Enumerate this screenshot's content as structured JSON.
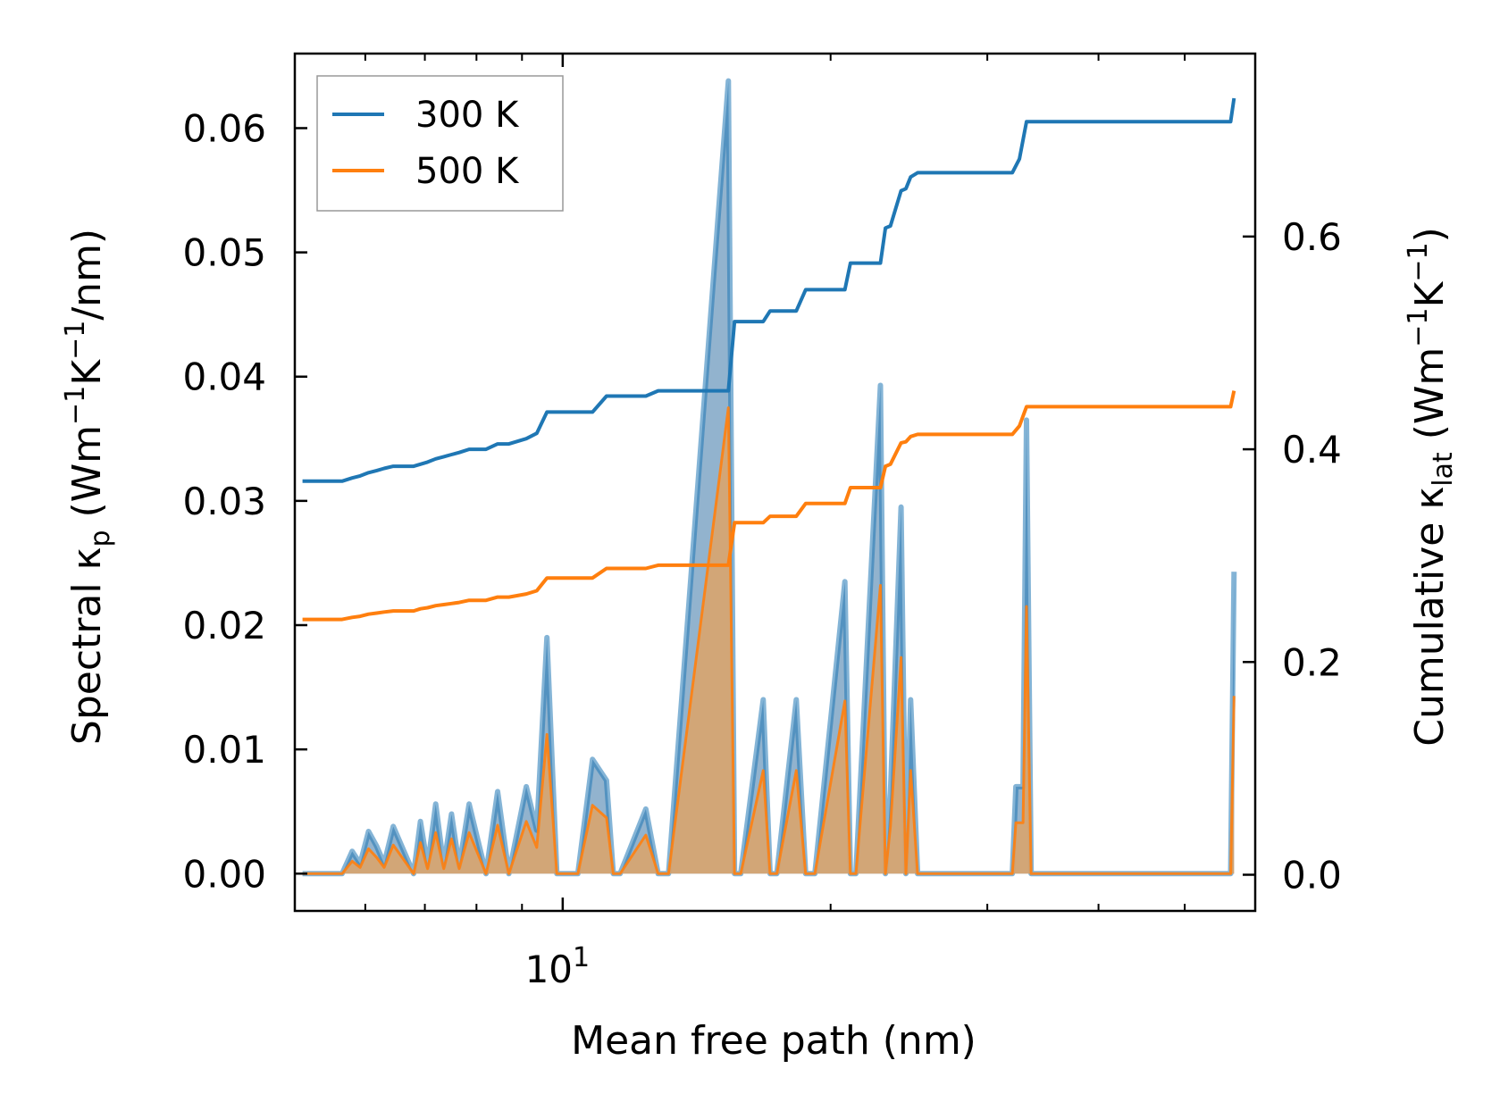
{
  "chart_data": {
    "type": "line",
    "xlabel": "Mean free path (nm)",
    "x_scale": "log",
    "xlim": [
      5,
      60
    ],
    "x_ticks": [
      {
        "value": 10,
        "base": "10",
        "exp": "1"
      }
    ],
    "left_axis": {
      "label_pre": "Spectral κ",
      "label_sub": "p",
      "label_units_1": " (Wm",
      "label_sup_1": "−1",
      "label_units_2": "K",
      "label_sup_2": "−1",
      "label_units_3": "/nm)",
      "ylim": [
        -0.003,
        0.066
      ],
      "ticks": [
        "0.00",
        "0.01",
        "0.02",
        "0.03",
        "0.04",
        "0.05",
        "0.06"
      ]
    },
    "right_axis": {
      "label_pre": "Cumulative κ",
      "label_sub": "lat",
      "label_units_1": " (Wm",
      "label_sup_1": "−1",
      "label_units_2": "K",
      "label_sup_2": "−1",
      "label_units_3": ")",
      "ylim": [
        -0.034,
        0.772
      ],
      "ticks": [
        "0.0",
        "0.2",
        "0.4",
        "0.6"
      ]
    },
    "legend": {
      "position": "top-left",
      "entries": [
        "300 K",
        "500 K"
      ]
    },
    "colors": {
      "s300": "#1f77b4",
      "s500": "#ff7f0e",
      "fill300": "#7fa6c6",
      "fill500": "#d9a46e"
    },
    "spectral": {
      "x": [
        5.1,
        5.65,
        5.8,
        5.92,
        6.05,
        6.18,
        6.3,
        6.45,
        6.8,
        6.92,
        7.05,
        7.2,
        7.35,
        7.5,
        7.65,
        7.85,
        8.2,
        8.45,
        8.7,
        9.1,
        9.35,
        9.6,
        9.85,
        10.05,
        10.4,
        10.8,
        11.2,
        11.4,
        11.6,
        12.4,
        12.8,
        13.15,
        15.35,
        15.6,
        15.85,
        16.8,
        17.1,
        17.4,
        18.3,
        18.75,
        19.2,
        20.75,
        21.05,
        21.35,
        22.75,
        23.05,
        23.35,
        24.0,
        24.3,
        24.6,
        25.05,
        25.35,
        32.0,
        32.3,
        32.9,
        33.2,
        33.6,
        56.3,
        56.8
      ],
      "k300": [
        0,
        0,
        0.0018,
        0.0008,
        0.0034,
        0.0022,
        0.0008,
        0.0038,
        0,
        0.0042,
        0.0006,
        0.0056,
        0.0006,
        0.0048,
        0.0006,
        0.0056,
        0,
        0.0066,
        0,
        0.007,
        0.0035,
        0.019,
        0,
        0,
        0,
        0.0092,
        0.0075,
        0,
        0,
        0.0052,
        0,
        0,
        0.0638,
        0,
        0,
        0.014,
        0,
        0,
        0.014,
        0,
        0,
        0.0235,
        0,
        0,
        0.0393,
        0,
        0.0065,
        0.0295,
        0,
        0.014,
        0,
        0,
        0,
        0.007,
        0.007,
        0.0365,
        0,
        0,
        0.0243
      ],
      "k500": [
        0,
        0,
        0.001,
        0.0005,
        0.002,
        0.0013,
        0.0005,
        0.0023,
        0,
        0.0025,
        0.0004,
        0.0033,
        0.0004,
        0.0028,
        0.0004,
        0.0033,
        0,
        0.0039,
        0,
        0.0042,
        0.0021,
        0.0112,
        0,
        0,
        0,
        0.0055,
        0.0045,
        0,
        0,
        0.0031,
        0,
        0,
        0.0375,
        0,
        0,
        0.0083,
        0,
        0,
        0.0083,
        0,
        0,
        0.0139,
        0,
        0,
        0.0232,
        0,
        0.0038,
        0.0174,
        0,
        0.0083,
        0,
        0,
        0,
        0.0041,
        0.0041,
        0.0215,
        0,
        0,
        0.0143
      ]
    },
    "cumulative": {
      "x": [
        5.1,
        5.65,
        5.8,
        5.92,
        6.05,
        6.18,
        6.3,
        6.45,
        6.8,
        6.92,
        7.05,
        7.2,
        7.35,
        7.5,
        7.65,
        7.85,
        8.2,
        8.45,
        8.7,
        9.1,
        9.35,
        9.6,
        9.85,
        10.8,
        11.2,
        12.4,
        12.8,
        15.35,
        15.6,
        16.8,
        17.1,
        18.3,
        18.75,
        20.75,
        21.05,
        22.75,
        23.05,
        23.35,
        24.0,
        24.3,
        24.6,
        25.05,
        32.0,
        32.6,
        33.2,
        56.3,
        56.8
      ],
      "c300": [
        0.37,
        0.37,
        0.373,
        0.375,
        0.378,
        0.38,
        0.382,
        0.384,
        0.384,
        0.386,
        0.388,
        0.391,
        0.393,
        0.395,
        0.397,
        0.4,
        0.4,
        0.405,
        0.405,
        0.41,
        0.415,
        0.435,
        0.435,
        0.435,
        0.45,
        0.45,
        0.455,
        0.455,
        0.52,
        0.52,
        0.53,
        0.53,
        0.55,
        0.55,
        0.575,
        0.575,
        0.608,
        0.61,
        0.643,
        0.645,
        0.656,
        0.66,
        0.66,
        0.673,
        0.708,
        0.708,
        0.73
      ],
      "c500": [
        0.24,
        0.24,
        0.242,
        0.243,
        0.245,
        0.246,
        0.247,
        0.248,
        0.248,
        0.25,
        0.251,
        0.253,
        0.254,
        0.255,
        0.256,
        0.258,
        0.258,
        0.261,
        0.261,
        0.264,
        0.267,
        0.279,
        0.279,
        0.279,
        0.288,
        0.288,
        0.291,
        0.291,
        0.331,
        0.331,
        0.337,
        0.337,
        0.349,
        0.349,
        0.364,
        0.364,
        0.384,
        0.386,
        0.406,
        0.407,
        0.412,
        0.414,
        0.414,
        0.422,
        0.44,
        0.44,
        0.455
      ]
    }
  }
}
